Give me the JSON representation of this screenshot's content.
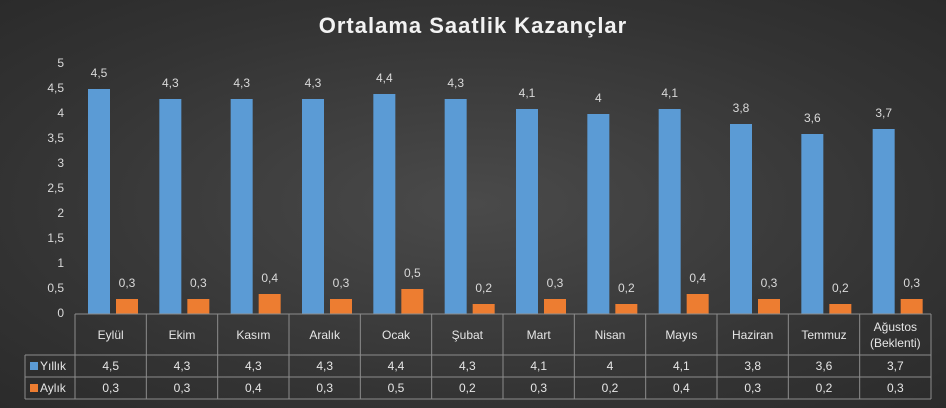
{
  "chart_data": {
    "type": "bar",
    "title": "Ortalama Saatlik Kazançlar",
    "categories": [
      "Eylül",
      "Ekim",
      "Kasım",
      "Aralık",
      "Ocak",
      "Şubat",
      "Mart",
      "Nisan",
      "Mayıs",
      "Haziran",
      "Temmuz",
      "Ağustos (Beklenti)"
    ],
    "series": [
      {
        "name": "Yıllık",
        "color": "#5b9bd5",
        "values": [
          4.5,
          4.3,
          4.3,
          4.3,
          4.4,
          4.3,
          4.1,
          4,
          4.1,
          3.8,
          3.6,
          3.7
        ],
        "value_labels": [
          "4,5",
          "4,3",
          "4,3",
          "4,3",
          "4,4",
          "4,3",
          "4,1",
          "4",
          "4,1",
          "3,8",
          "3,6",
          "3,7"
        ]
      },
      {
        "name": "Aylık",
        "color": "#ed7d31",
        "values": [
          0.3,
          0.3,
          0.4,
          0.3,
          0.5,
          0.2,
          0.3,
          0.2,
          0.4,
          0.3,
          0.2,
          0.3
        ],
        "value_labels": [
          "0,3",
          "0,3",
          "0,4",
          "0,3",
          "0,5",
          "0,2",
          "0,3",
          "0,2",
          "0,4",
          "0,3",
          "0,2",
          "0,3"
        ]
      }
    ],
    "ylim": [
      0,
      5
    ],
    "yticks": [
      0,
      {
        "value": 0.5,
        "label": "0,5"
      },
      1,
      {
        "value": 1.5,
        "label": "1,5"
      },
      2,
      {
        "value": 2.5,
        "label": "2,5"
      },
      3,
      {
        "value": 3.5,
        "label": "3,5"
      },
      4,
      {
        "value": 4.5,
        "label": "4,5"
      },
      5
    ],
    "grid": false,
    "data_table": true
  }
}
